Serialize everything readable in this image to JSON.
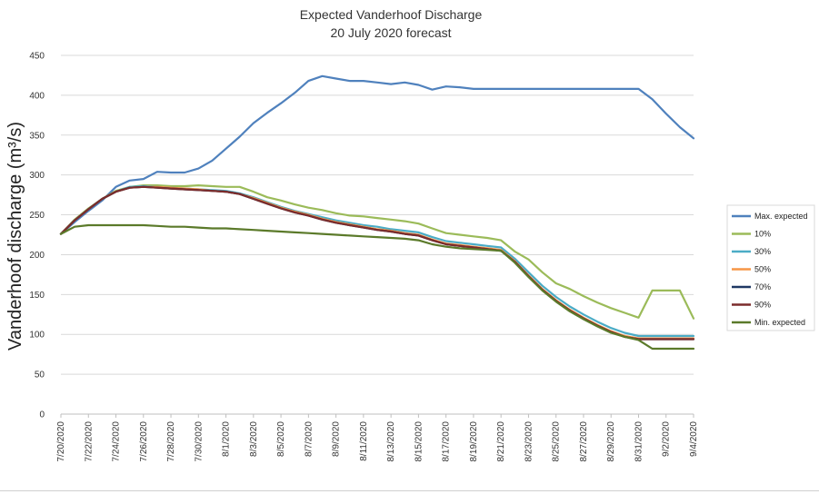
{
  "chart_data": {
    "type": "line",
    "title": "Expected Vanderhoof Discharge",
    "subtitle": "20 July 2020 forecast",
    "xlabel": "",
    "ylabel": "Vanderhoof discharge (m³/s)",
    "ylim": [
      0,
      450
    ],
    "yticks": [
      0,
      50,
      100,
      150,
      200,
      250,
      300,
      350,
      400,
      450
    ],
    "grid": "horizontal",
    "legend": "right",
    "x": [
      "7/20/2020",
      "7/21/2020",
      "7/22/2020",
      "7/23/2020",
      "7/24/2020",
      "7/25/2020",
      "7/26/2020",
      "7/27/2020",
      "7/28/2020",
      "7/29/2020",
      "7/30/2020",
      "7/31/2020",
      "8/1/2020",
      "8/2/2020",
      "8/3/2020",
      "8/4/2020",
      "8/5/2020",
      "8/6/2020",
      "8/7/2020",
      "8/8/2020",
      "8/9/2020",
      "8/10/2020",
      "8/11/2020",
      "8/12/2020",
      "8/13/2020",
      "8/14/2020",
      "8/15/2020",
      "8/16/2020",
      "8/17/2020",
      "8/18/2020",
      "8/19/2020",
      "8/20/2020",
      "8/21/2020",
      "8/22/2020",
      "8/23/2020",
      "8/24/2020",
      "8/25/2020",
      "8/26/2020",
      "8/27/2020",
      "8/28/2020",
      "8/29/2020",
      "8/30/2020",
      "8/31/2020",
      "9/1/2020",
      "9/2/2020",
      "9/3/2020",
      "9/4/2020"
    ],
    "xtick_labels": [
      "7/20/2020",
      "7/22/2020",
      "7/24/2020",
      "7/26/2020",
      "7/28/2020",
      "7/30/2020",
      "8/1/2020",
      "8/3/2020",
      "8/5/2020",
      "8/7/2020",
      "8/9/2020",
      "8/11/2020",
      "8/13/2020",
      "8/15/2020",
      "8/17/2020",
      "8/19/2020",
      "8/21/2020",
      "8/23/2020",
      "8/25/2020",
      "8/27/2020",
      "8/29/2020",
      "8/31/2020",
      "9/2/2020",
      "9/4/2020"
    ],
    "series": [
      {
        "name": "Max. expected",
        "color": "#4F81BD",
        "values": [
          226,
          241,
          255,
          268,
          285,
          293,
          295,
          304,
          303,
          303,
          308,
          318,
          333,
          348,
          365,
          378,
          390,
          403,
          418,
          424,
          421,
          418,
          418,
          416,
          414,
          416,
          413,
          407,
          411,
          410,
          408,
          408,
          408,
          408,
          408,
          408,
          408,
          408,
          408,
          408,
          408,
          408,
          408,
          395,
          377,
          360,
          346
        ]
      },
      {
        "name": "10%",
        "color": "#9BBB59",
        "values": [
          226,
          244,
          258,
          270,
          280,
          285,
          287,
          287,
          286,
          286,
          287,
          286,
          285,
          285,
          279,
          272,
          268,
          263,
          259,
          256,
          252,
          249,
          248,
          246,
          244,
          242,
          239,
          233,
          227,
          225,
          223,
          221,
          218,
          204,
          194,
          178,
          164,
          157,
          148,
          140,
          133,
          127,
          121,
          155,
          155,
          155,
          120
        ]
      },
      {
        "name": "30%",
        "color": "#4BACC6",
        "values": [
          226,
          243,
          257,
          270,
          279,
          285,
          286,
          285,
          284,
          283,
          282,
          281,
          280,
          277,
          272,
          266,
          260,
          255,
          251,
          247,
          243,
          240,
          237,
          235,
          232,
          230,
          228,
          222,
          217,
          215,
          213,
          211,
          209,
          195,
          178,
          161,
          147,
          135,
          125,
          116,
          108,
          102,
          98,
          98,
          98,
          98,
          98
        ]
      },
      {
        "name": "50%",
        "color": "#F79646",
        "values": [
          226,
          243,
          257,
          270,
          279,
          284,
          285,
          285,
          284,
          283,
          282,
          280,
          279,
          276,
          271,
          265,
          259,
          254,
          250,
          245,
          241,
          238,
          235,
          232,
          230,
          227,
          225,
          219,
          214,
          212,
          210,
          208,
          206,
          192,
          174,
          157,
          143,
          131,
          121,
          112,
          104,
          98,
          95,
          95,
          95,
          95,
          95
        ]
      },
      {
        "name": "70%",
        "color": "#1F3864",
        "values": [
          226,
          243,
          257,
          270,
          279,
          284,
          285,
          284,
          283,
          282,
          281,
          280,
          279,
          276,
          270,
          264,
          258,
          253,
          249,
          244,
          240,
          237,
          234,
          231,
          229,
          226,
          224,
          218,
          213,
          211,
          209,
          207,
          205,
          191,
          173,
          156,
          142,
          130,
          120,
          111,
          103,
          97,
          94,
          94,
          94,
          94,
          94
        ]
      },
      {
        "name": "90%",
        "color": "#7B2C2C",
        "values": [
          226,
          243,
          257,
          270,
          279,
          284,
          285,
          284,
          283,
          282,
          281,
          280,
          279,
          276,
          270,
          264,
          258,
          253,
          249,
          244,
          240,
          237,
          234,
          231,
          229,
          226,
          224,
          218,
          213,
          211,
          209,
          207,
          205,
          191,
          173,
          156,
          142,
          130,
          120,
          111,
          103,
          97,
          94,
          94,
          94,
          94,
          94
        ]
      },
      {
        "name": "Min. expected",
        "color": "#5B7A2A",
        "values": [
          226,
          235,
          237,
          237,
          237,
          237,
          237,
          236,
          235,
          235,
          234,
          233,
          233,
          232,
          231,
          230,
          229,
          228,
          227,
          226,
          225,
          224,
          223,
          222,
          221,
          220,
          218,
          213,
          210,
          208,
          207,
          206,
          205,
          190,
          172,
          155,
          141,
          129,
          119,
          110,
          102,
          97,
          93,
          82,
          82,
          82,
          82
        ]
      }
    ]
  }
}
